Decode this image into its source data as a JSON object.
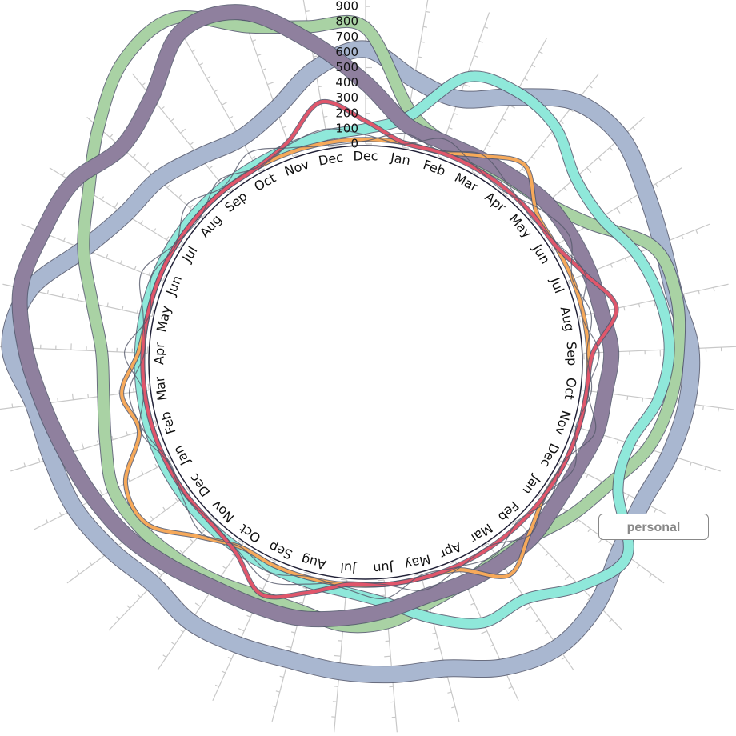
{
  "chart_data": {
    "type": "radial-line",
    "categories": [
      "Dec",
      "Jan",
      "Feb",
      "Mar",
      "Apr",
      "May",
      "Jun",
      "Jul",
      "Aug",
      "Sep",
      "Oct",
      "Nov",
      "Dec",
      "Jan",
      "Feb",
      "Mar",
      "Apr",
      "May",
      "Jun",
      "Jul",
      "Aug",
      "Sep",
      "Oct",
      "Nov",
      "Dec",
      "Jan",
      "Feb",
      "Mar",
      "Apr",
      "May",
      "Jun",
      "Jul",
      "Aug",
      "Sep",
      "Oct",
      "Nov",
      "Dec"
    ],
    "ylim": [
      0,
      1000
    ],
    "yticks": [
      0,
      100,
      200,
      300,
      400,
      500,
      600,
      700,
      800,
      900
    ],
    "series": [
      {
        "color": "#a9b7d0",
        "values": [
          620,
          450,
          400,
          560,
          760,
          800,
          720,
          660,
          640,
          700,
          690,
          650,
          600,
          640,
          760,
          820,
          760,
          640,
          620,
          600,
          580,
          600,
          620,
          580,
          640,
          700,
          720,
          760,
          900,
          820,
          560,
          420,
          380,
          300,
          250,
          330,
          520
        ]
      },
      {
        "color": "#8f809e",
        "values": [
          400,
          150,
          100,
          100,
          120,
          150,
          150,
          150,
          150,
          180,
          150,
          150,
          120,
          120,
          150,
          150,
          150,
          150,
          200,
          250,
          300,
          320,
          350,
          420,
          500,
          560,
          620,
          700,
          800,
          880,
          850,
          820,
          700,
          800,
          1050,
          1000,
          700
        ]
      },
      {
        "color": "#a9d2a4",
        "values": [
          760,
          250,
          100,
          80,
          100,
          150,
          300,
          600,
          650,
          620,
          580,
          500,
          350,
          250,
          150,
          120,
          150,
          200,
          280,
          300,
          250,
          250,
          300,
          350,
          400,
          420,
          350,
          300,
          300,
          400,
          560,
          700,
          900,
          1100,
          1150,
          900,
          800
        ]
      },
      {
        "color": "#8fe8da",
        "values": [
          100,
          200,
          550,
          600,
          550,
          400,
          380,
          480,
          540,
          560,
          500,
          380,
          420,
          700,
          600,
          440,
          440,
          300,
          150,
          80,
          60,
          50,
          50,
          50,
          50,
          50,
          50,
          50,
          50,
          50,
          50,
          50,
          50,
          50,
          50,
          60,
          80
        ]
      },
      {
        "color": "#f6a95a",
        "values": [
          30,
          30,
          30,
          120,
          230,
          60,
          30,
          30,
          30,
          30,
          30,
          30,
          30,
          30,
          120,
          250,
          60,
          30,
          30,
          30,
          30,
          30,
          30,
          150,
          350,
          330,
          120,
          180,
          60,
          30,
          30,
          30,
          30,
          30,
          30,
          30,
          30
        ]
      },
      {
        "color": "#e0566b",
        "values": [
          150,
          30,
          30,
          30,
          30,
          30,
          30,
          120,
          250,
          60,
          30,
          30,
          30,
          30,
          30,
          30,
          30,
          30,
          30,
          30,
          130,
          235,
          80,
          30,
          30,
          30,
          30,
          30,
          30,
          30,
          30,
          30,
          30,
          30,
          30,
          100,
          300
        ]
      },
      {
        "color": "#55596a",
        "values": [
          60,
          20,
          120,
          40,
          10,
          90,
          140,
          30,
          80,
          20,
          60,
          10,
          100,
          40,
          130,
          20,
          50,
          110,
          30,
          10,
          70,
          140,
          60,
          20,
          40,
          10,
          90,
          130,
          20,
          60,
          150,
          40,
          10,
          100,
          30,
          80,
          120
        ]
      },
      {
        "color": "#55596a",
        "values": [
          20,
          90,
          40,
          130,
          60,
          10,
          50,
          120,
          20,
          100,
          40,
          140,
          20,
          70,
          10,
          90,
          40,
          10,
          120,
          60,
          20,
          80,
          30,
          120,
          60,
          20,
          110,
          40,
          150,
          20,
          80,
          30,
          130,
          50,
          140,
          60,
          10
        ]
      }
    ],
    "tooltip": "personal"
  }
}
